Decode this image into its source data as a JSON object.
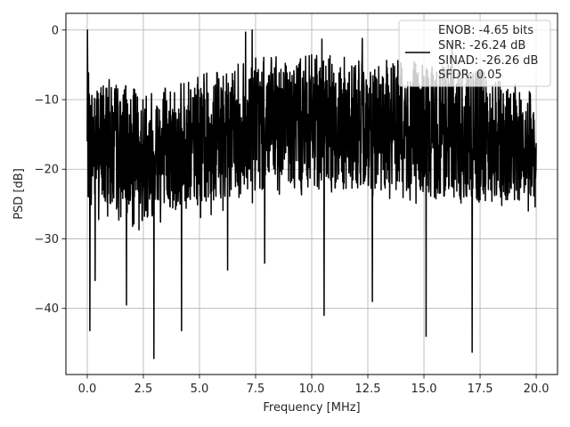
{
  "chart_data": {
    "type": "line",
    "title": "",
    "xlabel": "Frequency [MHz]",
    "ylabel": "PSD [dB]",
    "xlim": [
      -0.95,
      20.95
    ],
    "ylim": [
      -49.5,
      2.4
    ],
    "xticks": [
      0.0,
      2.5,
      5.0,
      7.5,
      10.0,
      12.5,
      15.0,
      17.5,
      20.0
    ],
    "xtick_labels": [
      "0.0",
      "2.5",
      "5.0",
      "7.5",
      "10.0",
      "12.5",
      "15.0",
      "17.5",
      "20.0"
    ],
    "yticks": [
      0,
      -10,
      -20,
      -30,
      -40
    ],
    "ytick_labels": [
      "0",
      "−10",
      "−20",
      "−30",
      "−40"
    ],
    "grid": true,
    "legend_position": "upper-right",
    "legend_entries": [
      "ENOB: -4.65 bits",
      "SNR: -26.24 dB",
      "SINAD: -26.26 dB",
      "SFDR: 0.05"
    ],
    "series": [
      {
        "color": "#000000",
        "x_range": [
          0.0,
          20.0
        ],
        "num_points": 2048,
        "seed": 7,
        "envelope_top": [
          {
            "x": 0.0,
            "y": -6
          },
          {
            "x": 2.5,
            "y": -8.5
          },
          {
            "x": 5.0,
            "y": -6.5
          },
          {
            "x": 7.5,
            "y": -4
          },
          {
            "x": 10.0,
            "y": -3.5
          },
          {
            "x": 12.5,
            "y": -4
          },
          {
            "x": 15.0,
            "y": -4.5
          },
          {
            "x": 17.5,
            "y": -5.5
          },
          {
            "x": 20.0,
            "y": -9
          }
        ],
        "envelope_bottom": [
          {
            "x": 0.0,
            "y": -27
          },
          {
            "x": 2.5,
            "y": -29
          },
          {
            "x": 5.0,
            "y": -27
          },
          {
            "x": 7.5,
            "y": -25
          },
          {
            "x": 10.0,
            "y": -25
          },
          {
            "x": 12.5,
            "y": -25
          },
          {
            "x": 15.0,
            "y": -26
          },
          {
            "x": 17.5,
            "y": -27
          },
          {
            "x": 20.0,
            "y": -26
          }
        ],
        "peaks": [
          {
            "x": 0.0,
            "y": 0.0
          },
          {
            "x": 7.05,
            "y": -0.3
          },
          {
            "x": 7.35,
            "y": 0.0
          },
          {
            "x": 10.45,
            "y": -1.3
          },
          {
            "x": 12.25,
            "y": -1.2
          },
          {
            "x": 16.25,
            "y": -2.0
          }
        ],
        "dips": [
          {
            "x": 0.12,
            "y": -43.2
          },
          {
            "x": 0.35,
            "y": -36.0
          },
          {
            "x": 1.75,
            "y": -39.5
          },
          {
            "x": 2.97,
            "y": -47.2
          },
          {
            "x": 4.2,
            "y": -43.2
          },
          {
            "x": 10.55,
            "y": -41.0
          },
          {
            "x": 12.7,
            "y": -39.0
          },
          {
            "x": 15.1,
            "y": -44.0
          },
          {
            "x": 17.15,
            "y": -46.3
          },
          {
            "x": 6.25,
            "y": -34.5
          },
          {
            "x": 7.9,
            "y": -33.5
          }
        ]
      }
    ]
  }
}
